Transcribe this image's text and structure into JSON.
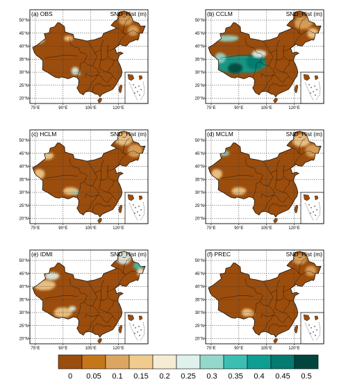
{
  "variable_label": "SND_Hist (m)",
  "panels": [
    {
      "label": "(a) OBS",
      "highlights": [
        {
          "lon": 76,
          "lat": 42.5,
          "level": 4,
          "rx": 4,
          "ry": 1.5
        },
        {
          "lon": 93,
          "lat": 43,
          "level": 3,
          "rx": 2.5,
          "ry": 1
        },
        {
          "lon": 96.5,
          "lat": 30.5,
          "level": 5,
          "rx": 2,
          "ry": 1.5
        },
        {
          "lon": 98.5,
          "lat": 29.5,
          "level": 6,
          "rx": 1,
          "ry": 0.8
        },
        {
          "lon": 124,
          "lat": 50,
          "level": 2,
          "rx": 4,
          "ry": 2
        },
        {
          "lon": 128,
          "lat": 46,
          "level": 2,
          "rx": 3,
          "ry": 2
        }
      ]
    },
    {
      "label": "(b) CCLM",
      "highlights": [
        {
          "lon": 91,
          "lat": 33,
          "level": 8,
          "rx": 14,
          "ry": 3.5
        },
        {
          "lon": 99,
          "lat": 34,
          "level": 9,
          "rx": 5,
          "ry": 3
        },
        {
          "lon": 88,
          "lat": 31.5,
          "level": 10,
          "rx": 4,
          "ry": 2
        },
        {
          "lon": 80,
          "lat": 35.5,
          "level": 6,
          "rx": 3,
          "ry": 2
        },
        {
          "lon": 84,
          "lat": 43,
          "level": 6,
          "rx": 6,
          "ry": 1.2
        },
        {
          "lon": 101,
          "lat": 37,
          "level": 5,
          "rx": 4,
          "ry": 1.5
        },
        {
          "lon": 125,
          "lat": 49,
          "level": 2,
          "rx": 5,
          "ry": 2.5
        },
        {
          "lon": 130,
          "lat": 45,
          "level": 3,
          "rx": 3,
          "ry": 2
        }
      ]
    },
    {
      "label": "(c) HCLM",
      "highlights": [
        {
          "lon": 81,
          "lat": 44,
          "level": 3,
          "rx": 4,
          "ry": 1.5
        },
        {
          "lon": 77,
          "lat": 37,
          "level": 3,
          "rx": 3,
          "ry": 2
        },
        {
          "lon": 94,
          "lat": 30.5,
          "level": 3,
          "rx": 4,
          "ry": 1.5
        },
        {
          "lon": 97,
          "lat": 30,
          "level": 6,
          "rx": 1.5,
          "ry": 1
        },
        {
          "lon": 123,
          "lat": 50.5,
          "level": 3,
          "rx": 5,
          "ry": 2.5
        },
        {
          "lon": 129,
          "lat": 46,
          "level": 2,
          "rx": 4,
          "ry": 2.5
        }
      ]
    },
    {
      "label": "(d) MCLM",
      "highlights": [
        {
          "lon": 82,
          "lat": 45,
          "level": 6,
          "rx": 3,
          "ry": 1
        },
        {
          "lon": 78,
          "lat": 37,
          "level": 3,
          "rx": 3,
          "ry": 2
        },
        {
          "lon": 90,
          "lat": 30.5,
          "level": 3,
          "rx": 4,
          "ry": 1.5
        },
        {
          "lon": 124,
          "lat": 50,
          "level": 3,
          "rx": 5,
          "ry": 2.5
        },
        {
          "lon": 130,
          "lat": 46,
          "level": 2,
          "rx": 4,
          "ry": 2.5
        }
      ]
    },
    {
      "label": "(e) IDMI",
      "highlights": [
        {
          "lon": 80,
          "lat": 40.5,
          "level": 3,
          "rx": 6,
          "ry": 2
        },
        {
          "lon": 84,
          "lat": 44,
          "level": 5,
          "rx": 4,
          "ry": 1.5
        },
        {
          "lon": 90,
          "lat": 30,
          "level": 3,
          "rx": 5,
          "ry": 2
        },
        {
          "lon": 95,
          "lat": 31.5,
          "level": 5,
          "rx": 2,
          "ry": 1
        },
        {
          "lon": 123,
          "lat": 51,
          "level": 5,
          "rx": 4,
          "ry": 2.5
        },
        {
          "lon": 131,
          "lat": 48,
          "level": 7,
          "rx": 3,
          "ry": 1.5
        },
        {
          "lon": 132,
          "lat": 45.5,
          "level": 4,
          "rx": 2,
          "ry": 1.5
        }
      ]
    },
    {
      "label": "(f) PREC",
      "highlights": [
        {
          "lon": 94.5,
          "lat": 30,
          "level": 3,
          "rx": 3,
          "ry": 1.5
        },
        {
          "lon": 97,
          "lat": 29.5,
          "level": 2,
          "rx": 1.5,
          "ry": 1
        },
        {
          "lon": 123,
          "lat": 50.5,
          "level": 2,
          "rx": 4,
          "ry": 2
        },
        {
          "lon": 129,
          "lat": 46,
          "level": 2,
          "rx": 3,
          "ry": 2
        }
      ]
    }
  ],
  "lon_ticks": [
    "75°E",
    "90°E",
    "105°E",
    "120°E"
  ],
  "lon_values": [
    75,
    90,
    105,
    120
  ],
  "lat_ticks": [
    "20°N",
    "25°N",
    "30°N",
    "35°N",
    "40°N",
    "45°N",
    "50°N"
  ],
  "lat_values": [
    20,
    25,
    30,
    35,
    40,
    45,
    50
  ],
  "map_extent": {
    "lon": [
      72,
      136
    ],
    "lat": [
      18,
      54
    ]
  },
  "colorbar": {
    "labels": [
      "0",
      "0.05",
      "0.1",
      "0.15",
      "0.2",
      "0.25",
      "0.3",
      "0.35",
      "0.4",
      "0.45",
      "0.5"
    ],
    "colors": [
      "#9b4d0d",
      "#c6761a",
      "#dca661",
      "#f0cb8d",
      "#f6ecd4",
      "#dff1ec",
      "#94d8cc",
      "#3cbfb2",
      "#0f9e92",
      "#057a6e",
      "#00463e"
    ]
  },
  "colors": {
    "land": "#9b4d0d",
    "border": "#1a1208",
    "grid": "#333333"
  }
}
